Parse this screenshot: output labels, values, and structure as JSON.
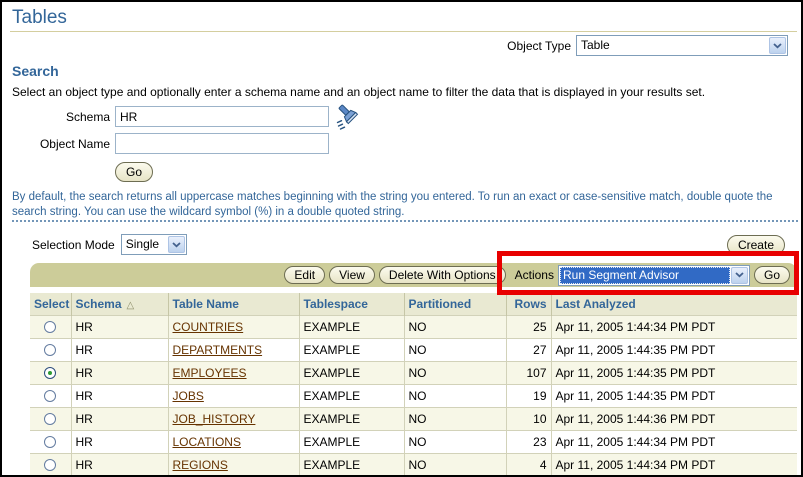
{
  "page": {
    "title": "Tables"
  },
  "object_type": {
    "label": "Object Type",
    "value": "Table"
  },
  "search": {
    "heading": "Search",
    "description": "Select an object type and optionally enter a schema name and an object name to filter the data that is displayed in your results set.",
    "schema_label": "Schema",
    "schema_value": "HR",
    "object_name_label": "Object Name",
    "object_name_value": "",
    "go_label": "Go",
    "note": "By default, the search returns all uppercase matches beginning with the string you entered. To run an exact or case-sensitive match, double quote the search string. You can use the wildcard symbol (%) in a double quoted string."
  },
  "selection_mode": {
    "label": "Selection Mode",
    "value": "Single"
  },
  "create_button_label": "Create",
  "toolbar": {
    "edit_label": "Edit",
    "view_label": "View",
    "delete_with_options_label": "Delete With Options",
    "actions_label": "Actions",
    "actions_value": "Run Segment Advisor",
    "go_label": "Go"
  },
  "table": {
    "headers": [
      "Select",
      "Schema",
      "Table Name",
      "Tablespace",
      "Partitioned",
      "Rows",
      "Last Analyzed"
    ],
    "sorted_column": "Schema",
    "sort_direction": "ascending",
    "rows": [
      {
        "selected": false,
        "schema": "HR",
        "table_name": "COUNTRIES",
        "tablespace": "EXAMPLE",
        "partitioned": "NO",
        "rows": "25",
        "last_analyzed": "Apr 11, 2005 1:44:34 PM PDT"
      },
      {
        "selected": false,
        "schema": "HR",
        "table_name": "DEPARTMENTS",
        "tablespace": "EXAMPLE",
        "partitioned": "NO",
        "rows": "27",
        "last_analyzed": "Apr 11, 2005 1:44:35 PM PDT"
      },
      {
        "selected": true,
        "schema": "HR",
        "table_name": "EMPLOYEES",
        "tablespace": "EXAMPLE",
        "partitioned": "NO",
        "rows": "107",
        "last_analyzed": "Apr 11, 2005 1:44:35 PM PDT"
      },
      {
        "selected": false,
        "schema": "HR",
        "table_name": "JOBS",
        "tablespace": "EXAMPLE",
        "partitioned": "NO",
        "rows": "19",
        "last_analyzed": "Apr 11, 2005 1:44:35 PM PDT"
      },
      {
        "selected": false,
        "schema": "HR",
        "table_name": "JOB_HISTORY",
        "tablespace": "EXAMPLE",
        "partitioned": "NO",
        "rows": "10",
        "last_analyzed": "Apr 11, 2005 1:44:36 PM PDT"
      },
      {
        "selected": false,
        "schema": "HR",
        "table_name": "LOCATIONS",
        "tablespace": "EXAMPLE",
        "partitioned": "NO",
        "rows": "23",
        "last_analyzed": "Apr 11, 2005 1:44:34 PM PDT"
      },
      {
        "selected": false,
        "schema": "HR",
        "table_name": "REGIONS",
        "tablespace": "EXAMPLE",
        "partitioned": "NO",
        "rows": "4",
        "last_analyzed": "Apr 11, 2005 1:44:34 PM PDT"
      }
    ]
  },
  "colors": {
    "heading_blue": "#336699",
    "toolbar_tan": "#cccc99",
    "row_stripe": "#f7f7e7",
    "link_brown": "#663300",
    "selected_option_blue": "#316ac5",
    "annotation_red": "#e80000"
  }
}
